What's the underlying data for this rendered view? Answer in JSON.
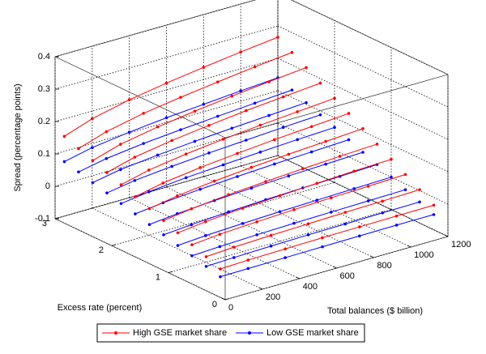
{
  "chart_data": {
    "type": "line3d",
    "xlabel": "Total balances ($ billion)",
    "ylabel": "Excess rate (percent)",
    "zlabel": "Spread (percentage points)",
    "x": [
      50,
      200,
      400,
      600,
      800,
      1000,
      1200
    ],
    "xlim": [
      0,
      1200
    ],
    "xticks": [
      0,
      200,
      400,
      600,
      800,
      1000,
      1200
    ],
    "ylim": [
      0,
      3
    ],
    "yticks": [
      0,
      1,
      2,
      3
    ],
    "zlim": [
      -0.1,
      0.4
    ],
    "zticks": [
      -0.1,
      0,
      0.1,
      0.2,
      0.3,
      0.4
    ],
    "grid": true,
    "legend": "bottom",
    "series": [
      {
        "name": "High GSE market share",
        "color": "#ff0000",
        "excess_rate": [
          0.25,
          0.5,
          0.75,
          1,
          1.25,
          1.5,
          1.75,
          2,
          2.25,
          2.5,
          2.75,
          3
        ],
        "values": [
          [
            -0.034,
            -0.031,
            -0.029,
            -0.027,
            -0.026,
            -0.025,
            -0.024
          ],
          [
            -0.017,
            -0.012,
            -0.008,
            -0.005,
            -0.002,
            0.0,
            0.003
          ],
          [
            -0.001,
            0.007,
            0.013,
            0.018,
            0.022,
            0.025,
            0.029
          ],
          [
            0.015,
            0.025,
            0.034,
            0.04,
            0.046,
            0.051,
            0.055
          ],
          [
            0.032,
            0.044,
            0.055,
            0.063,
            0.07,
            0.076,
            0.081
          ],
          [
            0.048,
            0.063,
            0.076,
            0.086,
            0.094,
            0.101,
            0.108
          ],
          [
            0.064,
            0.082,
            0.097,
            0.108,
            0.118,
            0.126,
            0.134
          ],
          [
            0.08,
            0.101,
            0.118,
            0.131,
            0.142,
            0.151,
            0.16
          ],
          [
            0.097,
            0.12,
            0.139,
            0.153,
            0.166,
            0.176,
            0.186
          ],
          [
            0.113,
            0.139,
            0.16,
            0.176,
            0.19,
            0.202,
            0.213
          ],
          [
            0.129,
            0.157,
            0.181,
            0.198,
            0.213,
            0.227,
            0.239
          ],
          [
            0.146,
            0.176,
            0.202,
            0.221,
            0.237,
            0.252,
            0.265
          ]
        ]
      },
      {
        "name": "Low GSE market share",
        "color": "#0000ff",
        "excess_rate": [
          0.25,
          0.5,
          0.75,
          1,
          1.25,
          1.5,
          1.75,
          2,
          2.25,
          2.5,
          2.75,
          3
        ],
        "values": [
          [
            -0.058,
            -0.057,
            -0.056,
            -0.055,
            -0.054,
            -0.053,
            -0.053
          ],
          [
            -0.047,
            -0.044,
            -0.041,
            -0.039,
            -0.038,
            -0.036,
            -0.035
          ],
          [
            -0.035,
            -0.031,
            -0.027,
            -0.024,
            -0.022,
            -0.02,
            -0.018
          ],
          [
            -0.024,
            -0.018,
            -0.013,
            -0.009,
            -0.006,
            -0.003,
            0.0
          ],
          [
            -0.012,
            -0.005,
            0.002,
            0.007,
            0.011,
            0.014,
            0.018
          ],
          [
            -0.001,
            0.008,
            0.016,
            0.022,
            0.027,
            0.031,
            0.035
          ],
          [
            0.011,
            0.021,
            0.03,
            0.037,
            0.043,
            0.048,
            0.053
          ],
          [
            0.022,
            0.034,
            0.045,
            0.052,
            0.059,
            0.065,
            0.07
          ],
          [
            0.034,
            0.048,
            0.059,
            0.068,
            0.075,
            0.082,
            0.088
          ],
          [
            0.045,
            0.061,
            0.073,
            0.083,
            0.091,
            0.098,
            0.105
          ],
          [
            0.057,
            0.074,
            0.088,
            0.098,
            0.107,
            0.115,
            0.123
          ],
          [
            0.068,
            0.087,
            0.102,
            0.114,
            0.123,
            0.132,
            0.14
          ]
        ]
      }
    ]
  }
}
